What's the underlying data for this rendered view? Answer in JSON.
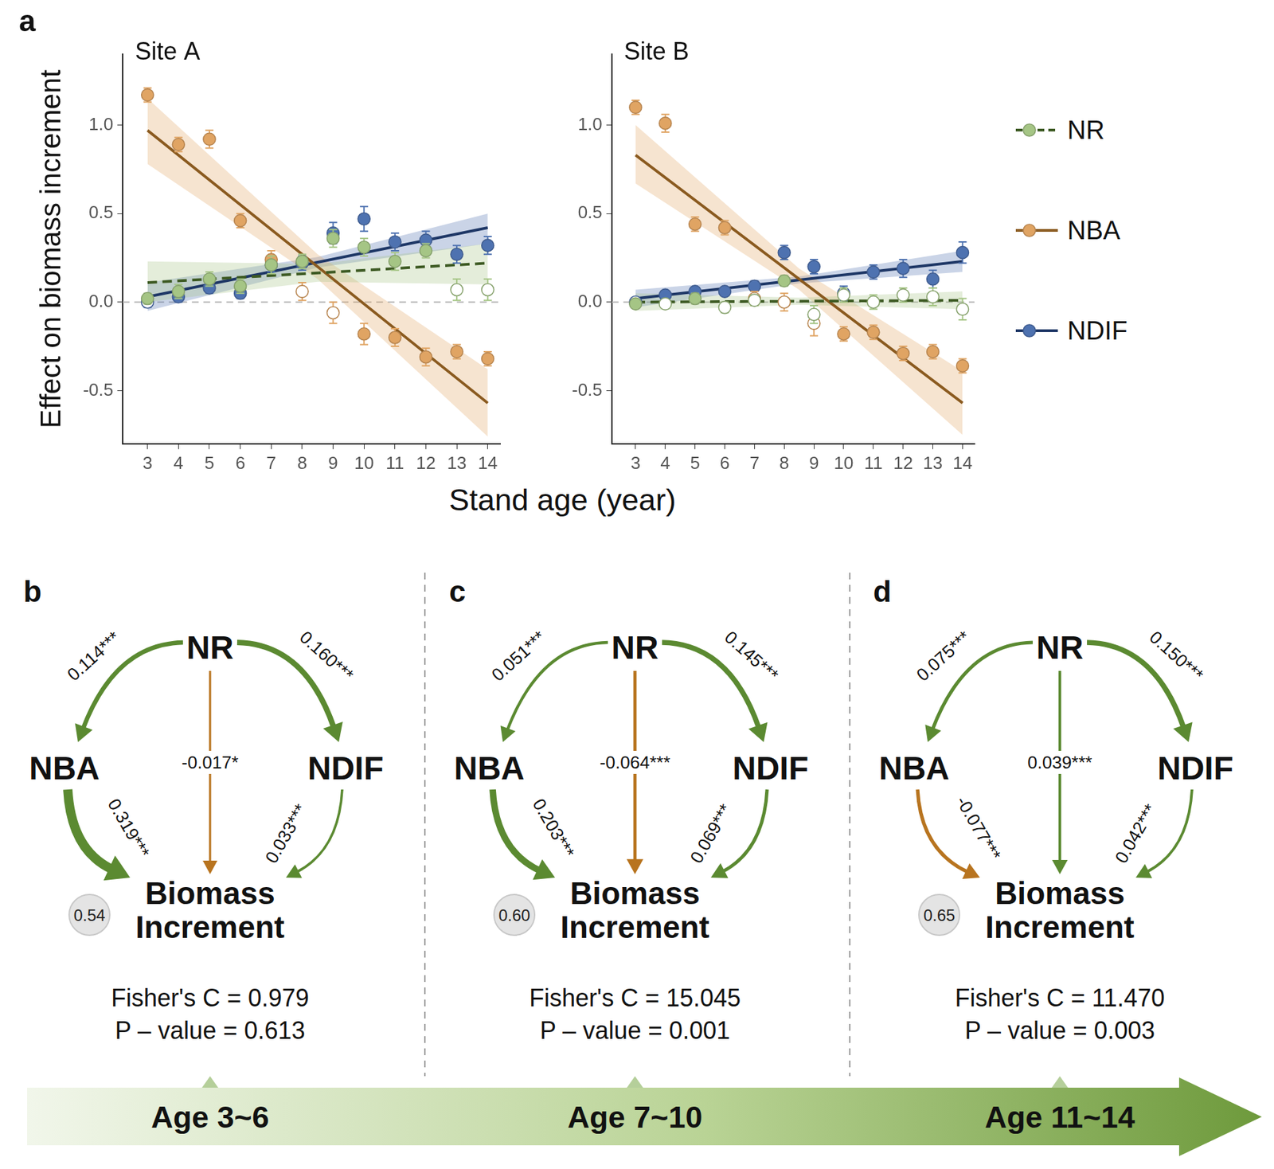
{
  "figure": {
    "panel_label": "a",
    "ylabel": "Effect on biomass increment",
    "xlabel": "Stand age (year)"
  },
  "chart_data": [
    {
      "type": "scatter",
      "title": "Site A",
      "x": [
        3,
        4,
        5,
        6,
        7,
        8,
        9,
        10,
        11,
        12,
        13,
        14
      ],
      "xlim": [
        2.2,
        14.4
      ],
      "xticks": [
        3,
        4,
        5,
        6,
        7,
        8,
        9,
        10,
        11,
        12,
        13,
        14
      ],
      "ylim": [
        -0.8,
        1.4
      ],
      "yticks": [
        -0.5,
        {
          "value": 0,
          "label": "0.0"
        },
        0.5,
        {
          "value": 1,
          "label": "1.0"
        }
      ],
      "grid": false,
      "legend": "right",
      "reference_y": 0,
      "series": [
        {
          "name": "NR",
          "color": "#a5c585",
          "marker": "circle",
          "values": [
            0.02,
            0.06,
            0.13,
            0.09,
            0.21,
            0.23,
            0.36,
            0.31,
            0.23,
            0.29,
            0.07,
            0.07
          ],
          "errors": [
            0.03,
            0.04,
            0.04,
            0.04,
            0.05,
            0.04,
            0.05,
            0.05,
            0.05,
            0.04,
            0.06,
            0.06
          ],
          "significant": [
            true,
            true,
            true,
            true,
            true,
            true,
            true,
            true,
            true,
            true,
            false,
            false
          ],
          "fit": {
            "color": "#3d5a23",
            "line_style": "dashed",
            "x": [
              3,
              14
            ],
            "values": [
              0.11,
              0.22
            ],
            "band_x": [
              3,
              8.5,
              14
            ],
            "lower": [
              0.0,
              0.115,
              0.1
            ],
            "upper": [
              0.23,
              0.215,
              0.33
            ]
          }
        },
        {
          "name": "NBA",
          "color": "#e0a463",
          "marker": "circle",
          "values": [
            1.17,
            0.89,
            0.92,
            0.46,
            0.24,
            0.06,
            -0.06,
            -0.18,
            -0.2,
            -0.31,
            -0.28,
            -0.32
          ],
          "errors": [
            0.04,
            0.04,
            0.05,
            0.04,
            0.05,
            0.05,
            0.06,
            0.06,
            0.05,
            0.05,
            0.04,
            0.04
          ],
          "significant": [
            true,
            true,
            true,
            true,
            true,
            false,
            false,
            true,
            true,
            true,
            true,
            true
          ],
          "fit": {
            "color": "#8a5a1f",
            "line_style": "solid",
            "x": [
              3,
              14
            ],
            "values": [
              0.97,
              -0.57
            ],
            "band_x": [
              3,
              8.5,
              14
            ],
            "lower": [
              0.78,
              0.13,
              -0.76
            ],
            "upper": [
              1.15,
              0.27,
              -0.38
            ]
          }
        },
        {
          "name": "NDIF",
          "color": "#4e72b0",
          "marker": "circle",
          "values": [
            0,
            0.03,
            0.08,
            0.05,
            0.21,
            0.22,
            0.39,
            0.47,
            0.34,
            0.35,
            0.27,
            0.32
          ],
          "errors": [
            0.03,
            0.03,
            0.03,
            0.03,
            0.04,
            0.04,
            0.06,
            0.07,
            0.05,
            0.05,
            0.05,
            0.05
          ],
          "significant": [
            false,
            true,
            true,
            true,
            true,
            true,
            true,
            true,
            true,
            true,
            true,
            true
          ],
          "fit": {
            "color": "#1e3766",
            "line_style": "solid",
            "x": [
              3,
              14
            ],
            "values": [
              0.03,
              0.42
            ],
            "band_x": [
              3,
              8.5,
              14
            ],
            "lower": [
              -0.05,
              0.195,
              0.33
            ],
            "upper": [
              0.11,
              0.255,
              0.5
            ]
          }
        }
      ]
    },
    {
      "type": "scatter",
      "title": "Site B",
      "x": [
        3,
        4,
        5,
        6,
        7,
        8,
        9,
        10,
        11,
        12,
        13,
        14
      ],
      "xlim": [
        2.2,
        14.4
      ],
      "xticks": [
        3,
        4,
        5,
        6,
        7,
        8,
        9,
        10,
        11,
        12,
        13,
        14
      ],
      "ylim": [
        -0.8,
        1.4
      ],
      "yticks": [
        -0.5,
        {
          "value": 0,
          "label": "0.0"
        },
        0.5,
        {
          "value": 1,
          "label": "1.0"
        }
      ],
      "grid": false,
      "reference_y": 0,
      "series": [
        {
          "name": "NR",
          "color": "#a5c585",
          "marker": "circle",
          "values": [
            -0.01,
            -0.01,
            0.02,
            -0.03,
            0.01,
            0.12,
            -0.07,
            0.04,
            0,
            0.04,
            0.03,
            -0.04
          ],
          "errors": [
            0.02,
            0.02,
            0.03,
            0.03,
            0.03,
            0.03,
            0.05,
            0.04,
            0.04,
            0.04,
            0.05,
            0.06
          ],
          "significant": [
            true,
            false,
            true,
            false,
            false,
            true,
            false,
            false,
            false,
            false,
            false,
            false
          ],
          "fit": {
            "color": "#3d5a23",
            "line_style": "dashed",
            "x": [
              3,
              14
            ],
            "values": [
              0,
              0.01
            ],
            "band_x": [
              3,
              8.5,
              14
            ],
            "lower": [
              -0.05,
              -0.015,
              -0.04
            ],
            "upper": [
              0.05,
              0.025,
              0.06
            ]
          }
        },
        {
          "name": "NBA",
          "color": "#e0a463",
          "marker": "circle",
          "values": [
            1.1,
            1.01,
            0.44,
            0.42,
            0.02,
            0,
            -0.12,
            -0.18,
            -0.17,
            -0.29,
            -0.28,
            -0.36
          ],
          "errors": [
            0.04,
            0.05,
            0.04,
            0.04,
            0.04,
            0.05,
            0.07,
            0.04,
            0.04,
            0.04,
            0.04,
            0.04
          ],
          "significant": [
            true,
            true,
            true,
            true,
            false,
            false,
            false,
            true,
            true,
            true,
            true,
            true
          ],
          "fit": {
            "color": "#8a5a1f",
            "line_style": "solid",
            "x": [
              3,
              14
            ],
            "values": [
              0.83,
              -0.57
            ],
            "band_x": [
              3,
              8.5,
              14
            ],
            "lower": [
              0.67,
              0.07,
              -0.75
            ],
            "upper": [
              1.0,
              0.19,
              -0.39
            ]
          }
        },
        {
          "name": "NDIF",
          "color": "#4e72b0",
          "marker": "circle",
          "values": [
            0,
            0.04,
            0.06,
            0.06,
            0.09,
            0.28,
            0.2,
            0.05,
            0.17,
            0.19,
            0.13,
            0.28
          ],
          "errors": [
            0.02,
            0.02,
            0.02,
            0.02,
            0.03,
            0.04,
            0.04,
            0.04,
            0.04,
            0.05,
            0.05,
            0.06
          ],
          "significant": [
            false,
            true,
            true,
            true,
            true,
            true,
            true,
            false,
            true,
            true,
            true,
            true
          ],
          "fit": {
            "color": "#1e3766",
            "line_style": "solid",
            "x": [
              3,
              14
            ],
            "values": [
              0.02,
              0.23
            ],
            "band_x": [
              3,
              8.5,
              14
            ],
            "lower": [
              -0.03,
              0.105,
              0.17
            ],
            "upper": [
              0.07,
              0.145,
              0.29
            ]
          }
        }
      ]
    }
  ],
  "diagrams": [
    {
      "label": "b",
      "nodes": [
        "NR",
        "NBA",
        "NDIF",
        "Biomass Increment"
      ],
      "paths": [
        {
          "from": "NR",
          "to": "NBA",
          "value": 0.114,
          "label": "0.114***"
        },
        {
          "from": "NR",
          "to": "NDIF",
          "value": 0.16,
          "label": "0.160***"
        },
        {
          "from": "NR",
          "to": "Biomass Increment",
          "value": -0.017,
          "label": "-0.017*"
        },
        {
          "from": "NBA",
          "to": "Biomass Increment",
          "value": 0.319,
          "label": "0.319***"
        },
        {
          "from": "NDIF",
          "to": "Biomass Increment",
          "value": 0.033,
          "label": "0.033***"
        }
      ],
      "r2": "0.54",
      "fit_text": [
        "Fisher's C = 0.979",
        "P – value = 0.613"
      ],
      "age": "Age 3~6"
    },
    {
      "label": "c",
      "nodes": [
        "NR",
        "NBA",
        "NDIF",
        "Biomass Increment"
      ],
      "paths": [
        {
          "from": "NR",
          "to": "NBA",
          "value": 0.051,
          "label": "0.051***"
        },
        {
          "from": "NR",
          "to": "NDIF",
          "value": 0.145,
          "label": "0.145***"
        },
        {
          "from": "NR",
          "to": "Biomass Increment",
          "value": -0.064,
          "label": "-0.064***"
        },
        {
          "from": "NBA",
          "to": "Biomass Increment",
          "value": 0.203,
          "label": "0.203***"
        },
        {
          "from": "NDIF",
          "to": "Biomass Increment",
          "value": 0.069,
          "label": "0.069***"
        }
      ],
      "r2": "0.60",
      "fit_text": [
        "Fisher's C = 15.045",
        "P – value = 0.001"
      ],
      "age": "Age 7~10"
    },
    {
      "label": "d",
      "nodes": [
        "NR",
        "NBA",
        "NDIF",
        "Biomass Increment"
      ],
      "paths": [
        {
          "from": "NR",
          "to": "NBA",
          "value": 0.075,
          "label": "0.075***"
        },
        {
          "from": "NR",
          "to": "NDIF",
          "value": 0.15,
          "label": "0.150***"
        },
        {
          "from": "NR",
          "to": "Biomass Increment",
          "value": 0.039,
          "label": "0.039***"
        },
        {
          "from": "NBA",
          "to": "Biomass Increment",
          "value": -0.077,
          "label": "-0.077***"
        },
        {
          "from": "NDIF",
          "to": "Biomass Increment",
          "value": 0.042,
          "label": "0.042***"
        }
      ],
      "r2": "0.65",
      "fit_text": [
        "Fisher's C = 11.470",
        "P – value = 0.003"
      ],
      "age": "Age 11~14"
    }
  ]
}
